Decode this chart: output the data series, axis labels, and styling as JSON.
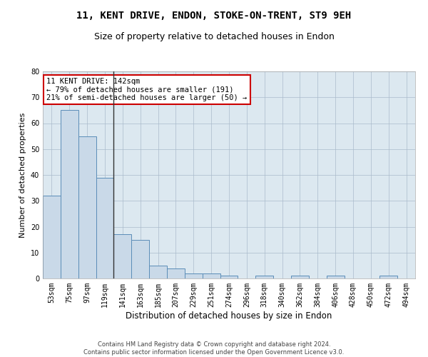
{
  "title1": "11, KENT DRIVE, ENDON, STOKE-ON-TRENT, ST9 9EH",
  "title2": "Size of property relative to detached houses in Endon",
  "xlabel": "Distribution of detached houses by size in Endon",
  "ylabel": "Number of detached properties",
  "bar_color": "#c9d9e8",
  "bar_edge_color": "#5b8db8",
  "vline_color": "#333333",
  "categories": [
    "53sqm",
    "75sqm",
    "97sqm",
    "119sqm",
    "141sqm",
    "163sqm",
    "185sqm",
    "207sqm",
    "229sqm",
    "251sqm",
    "274sqm",
    "296sqm",
    "318sqm",
    "340sqm",
    "362sqm",
    "384sqm",
    "406sqm",
    "428sqm",
    "450sqm",
    "472sqm",
    "494sqm"
  ],
  "values": [
    32,
    65,
    55,
    39,
    17,
    15,
    5,
    4,
    2,
    2,
    1,
    0,
    1,
    0,
    1,
    0,
    1,
    0,
    0,
    1,
    0
  ],
  "ylim": [
    0,
    80
  ],
  "yticks": [
    0,
    10,
    20,
    30,
    40,
    50,
    60,
    70,
    80
  ],
  "grid_color": "#aabbcc",
  "background_color": "#dce8f0",
  "annotation_text": "11 KENT DRIVE: 142sqm\n← 79% of detached houses are smaller (191)\n21% of semi-detached houses are larger (50) →",
  "annotation_box_color": "#ffffff",
  "annotation_box_edgecolor": "#cc0000",
  "footer": "Contains HM Land Registry data © Crown copyright and database right 2024.\nContains public sector information licensed under the Open Government Licence v3.0.",
  "title1_fontsize": 10,
  "title2_fontsize": 9,
  "tick_fontsize": 7,
  "ylabel_fontsize": 8,
  "xlabel_fontsize": 8.5,
  "annotation_fontsize": 7.5,
  "footer_fontsize": 6
}
